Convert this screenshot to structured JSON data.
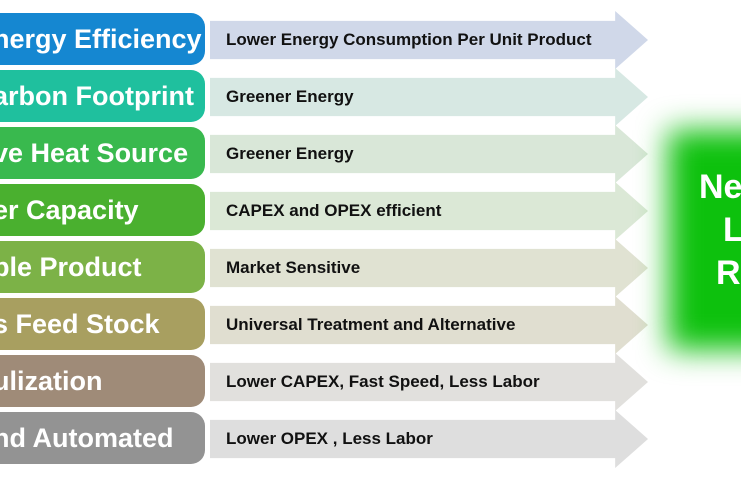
{
  "diagram": {
    "rows": [
      {
        "label": "nergy Efficiency",
        "description": "Lower Energy Consumption Per Unit Product",
        "label_color": "#1587d1",
        "arrow_color": "#d0d8e9"
      },
      {
        "label": "arbon Footprint",
        "description": "Greener Energy",
        "label_color": "#1fc09e",
        "arrow_color": "#d7e8e3"
      },
      {
        "label": "ve Heat Source",
        "description": "Greener Energy",
        "label_color": "#39b94e",
        "arrow_color": "#d9e7d8"
      },
      {
        "label": "er Capacity",
        "description": "CAPEX and OPEX efficient",
        "label_color": "#4ab02f",
        "arrow_color": "#dbe8d6"
      },
      {
        "label": "ble Product",
        "description": "Market Sensitive",
        "label_color": "#7cb247",
        "arrow_color": "#e0e2d2"
      },
      {
        "label": "s Feed Stock",
        "description": "Universal Treatment and Alternative",
        "label_color": "#a89f60",
        "arrow_color": "#e0ded0"
      },
      {
        "label": "ulization",
        "description": "Lower CAPEX, Fast Speed, Less Labor",
        "label_color": "#9f8b78",
        "arrow_color": "#e1e0dd"
      },
      {
        "label": "nd Automated",
        "description": "Lower OPEX , Less Labor",
        "label_color": "#939393",
        "arrow_color": "#dedede"
      }
    ],
    "result_box": {
      "visible_lines": [
        "Ne",
        "L",
        "R"
      ],
      "color": "#0dc10d",
      "text_color": "#ffffff"
    }
  }
}
